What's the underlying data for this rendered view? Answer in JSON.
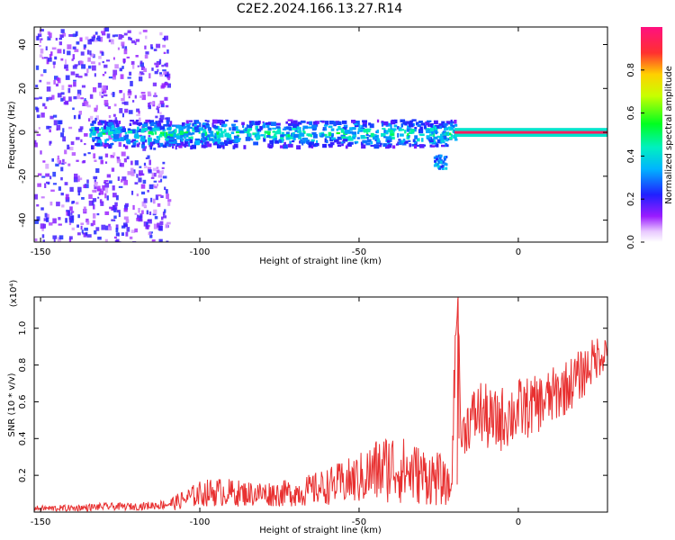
{
  "title": "C2E2.2024.166.13.27.R14",
  "chart_data": [
    {
      "type": "heatmap",
      "xlabel": "Height of straight line (km)",
      "ylabel": "Frequency (Hz)",
      "xlim": [
        -152,
        28
      ],
      "ylim": [
        -50,
        48
      ],
      "xticks": [
        -150,
        -100,
        -50,
        0
      ],
      "yticks": [
        -40,
        -20,
        0,
        20,
        40
      ],
      "colorbar": {
        "label": "Normalized spectral amplitude",
        "range": [
          0,
          1
        ],
        "ticks": [
          "0.0",
          "0.2",
          "0.4",
          "0.6",
          "0.8"
        ],
        "tick_values": [
          0,
          0.2,
          0.4,
          0.6,
          0.8
        ]
      },
      "features": [
        {
          "region": "noise",
          "x_range": [
            -152,
            -110
          ],
          "freq_range": [
            -50,
            48
          ],
          "amplitude": 0.2
        },
        {
          "region": "band",
          "x_range": [
            -135,
            -20
          ],
          "center_hz": 0,
          "half_width_hz": 6,
          "amplitude": 0.45
        },
        {
          "region": "tone",
          "x_range": [
            -20,
            28
          ],
          "center_hz": 0,
          "half_width_hz": 2,
          "amplitude": 0.95
        },
        {
          "region": "blob",
          "x_range": [
            -27,
            -23
          ],
          "center_hz": -13,
          "half_width_hz": 3,
          "amplitude": 0.3
        }
      ]
    },
    {
      "type": "line",
      "xlabel": "Height of straight line (km)",
      "ylabel": "SNR (10 * v/v)",
      "y_multiplier": "(x10⁴)",
      "xlim": [
        -152,
        28
      ],
      "ylim": [
        0,
        1.17
      ],
      "xticks": [
        -150,
        -100,
        -50,
        0
      ],
      "yticks": [
        0.2,
        0.4,
        0.6,
        0.8,
        1.0
      ],
      "color": "#e83030",
      "series": [
        {
          "x": [
            -152,
            -140,
            -130,
            -125,
            -120,
            -112,
            -108,
            -100,
            -95,
            -85,
            -75,
            -68,
            -60,
            -50,
            -45,
            -40,
            -35,
            -30,
            -25,
            -21,
            -20,
            -19,
            -18,
            -16,
            -12,
            -8,
            -4,
            0,
            5,
            10,
            15,
            20,
            25,
            28
          ],
          "y": [
            0.02,
            0.02,
            0.03,
            0.03,
            0.03,
            0.04,
            0.05,
            0.1,
            0.11,
            0.1,
            0.1,
            0.11,
            0.14,
            0.18,
            0.22,
            0.25,
            0.22,
            0.2,
            0.18,
            0.12,
            0.75,
            1.2,
            0.4,
            0.48,
            0.55,
            0.48,
            0.52,
            0.55,
            0.58,
            0.62,
            0.68,
            0.75,
            0.85,
            0.88
          ],
          "band": [
            0.015,
            0.02,
            0.02,
            0.02,
            0.02,
            0.025,
            0.04,
            0.07,
            0.08,
            0.07,
            0.07,
            0.08,
            0.1,
            0.14,
            0.18,
            0.2,
            0.18,
            0.16,
            0.15,
            0.08,
            0.2,
            0.05,
            0.12,
            0.15,
            0.18,
            0.18,
            0.18,
            0.18,
            0.16,
            0.16,
            0.15,
            0.14,
            0.12,
            0.1
          ]
        }
      ]
    }
  ]
}
